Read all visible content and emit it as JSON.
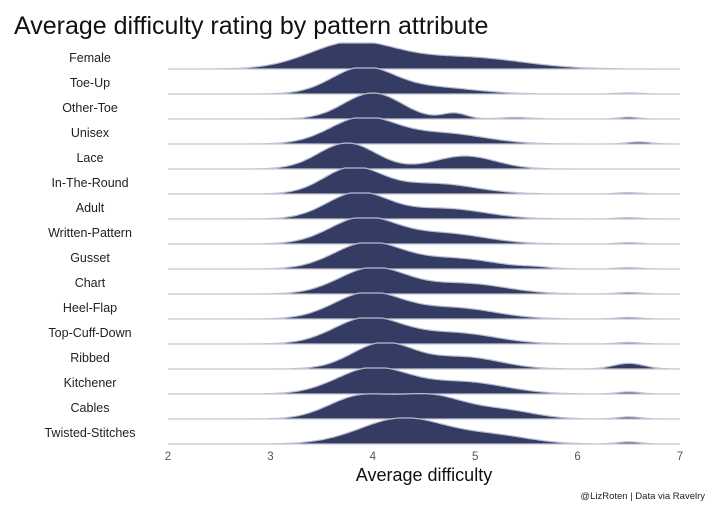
{
  "chart_data": {
    "type": "ridgeline",
    "title": "Average difficulty rating by pattern attribute",
    "xlabel": "Average difficulty",
    "ylabel": "",
    "xlim": [
      2,
      7
    ],
    "xticks": [
      2,
      3,
      4,
      5,
      6,
      7
    ],
    "grid": false,
    "fill_color": "#343c64",
    "caption": "@LizRoten | Data via Ravelry",
    "series": [
      {
        "name": "Female",
        "peaks": [
          [
            3.8,
            0.42,
            1.0
          ],
          [
            4.9,
            0.55,
            0.45
          ]
        ]
      },
      {
        "name": "Toe-Up",
        "peaks": [
          [
            3.9,
            0.3,
            1.0
          ],
          [
            4.6,
            0.4,
            0.25
          ],
          [
            6.5,
            0.12,
            0.04
          ]
        ]
      },
      {
        "name": "Other-Toe",
        "peaks": [
          [
            4.0,
            0.28,
            1.0
          ],
          [
            4.8,
            0.12,
            0.22
          ],
          [
            5.4,
            0.15,
            0.06
          ],
          [
            6.5,
            0.1,
            0.07
          ]
        ]
      },
      {
        "name": "Unisex",
        "peaks": [
          [
            3.9,
            0.32,
            1.0
          ],
          [
            4.7,
            0.4,
            0.4
          ],
          [
            6.6,
            0.12,
            0.08
          ]
        ]
      },
      {
        "name": "Lace",
        "peaks": [
          [
            3.75,
            0.28,
            1.0
          ],
          [
            4.9,
            0.3,
            0.5
          ]
        ]
      },
      {
        "name": "In-The-Round",
        "peaks": [
          [
            3.8,
            0.28,
            1.0
          ],
          [
            4.6,
            0.4,
            0.4
          ],
          [
            6.5,
            0.12,
            0.05
          ]
        ]
      },
      {
        "name": "Adult",
        "peaks": [
          [
            3.85,
            0.3,
            1.0
          ],
          [
            4.7,
            0.4,
            0.4
          ],
          [
            6.5,
            0.12,
            0.05
          ]
        ]
      },
      {
        "name": "Written-Pattern",
        "peaks": [
          [
            3.9,
            0.32,
            1.0
          ],
          [
            4.7,
            0.4,
            0.4
          ],
          [
            6.5,
            0.12,
            0.05
          ]
        ]
      },
      {
        "name": "Gusset",
        "peaks": [
          [
            3.95,
            0.33,
            1.0
          ],
          [
            4.8,
            0.4,
            0.4
          ],
          [
            5.6,
            0.15,
            0.05
          ],
          [
            6.5,
            0.12,
            0.05
          ]
        ]
      },
      {
        "name": "Chart",
        "peaks": [
          [
            4.0,
            0.33,
            1.0
          ],
          [
            4.9,
            0.4,
            0.4
          ],
          [
            6.5,
            0.12,
            0.06
          ]
        ]
      },
      {
        "name": "Heel-Flap",
        "peaks": [
          [
            3.95,
            0.33,
            1.0
          ],
          [
            4.8,
            0.4,
            0.42
          ],
          [
            6.5,
            0.12,
            0.06
          ]
        ]
      },
      {
        "name": "Top-Cuff-Down",
        "peaks": [
          [
            3.95,
            0.33,
            1.0
          ],
          [
            4.8,
            0.4,
            0.42
          ],
          [
            6.5,
            0.12,
            0.06
          ]
        ]
      },
      {
        "name": "Ribbed",
        "peaks": [
          [
            4.1,
            0.3,
            1.0
          ],
          [
            4.9,
            0.35,
            0.45
          ],
          [
            6.5,
            0.15,
            0.22
          ]
        ]
      },
      {
        "name": "Kitchener",
        "peaks": [
          [
            4.0,
            0.35,
            1.0
          ],
          [
            4.9,
            0.4,
            0.45
          ],
          [
            6.5,
            0.12,
            0.08
          ]
        ]
      },
      {
        "name": "Cables",
        "peaks": [
          [
            3.85,
            0.3,
            0.8
          ],
          [
            4.55,
            0.35,
            0.9
          ],
          [
            5.3,
            0.3,
            0.3
          ],
          [
            6.5,
            0.12,
            0.08
          ]
        ]
      },
      {
        "name": "Twisted-Stitches",
        "peaks": [
          [
            4.3,
            0.42,
            1.0
          ],
          [
            5.2,
            0.35,
            0.3
          ],
          [
            6.5,
            0.12,
            0.08
          ]
        ]
      }
    ]
  }
}
